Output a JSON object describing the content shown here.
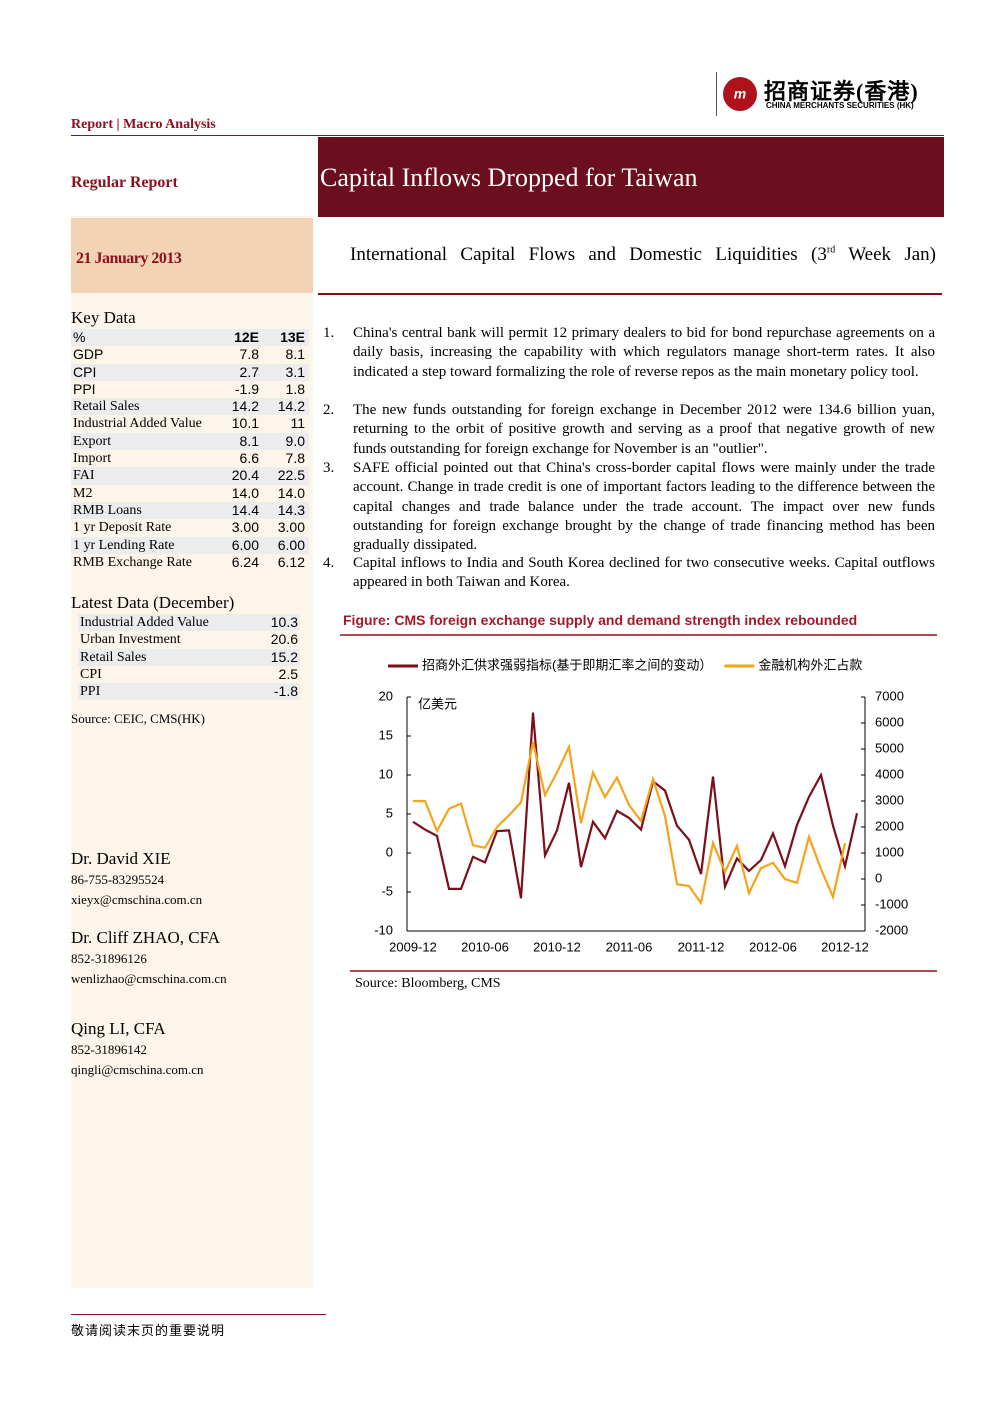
{
  "header": {
    "logo_cn": "招商证券(香港)",
    "logo_en": "CHINA MERCHANTS SECURITIES (HK)",
    "section": "Report | Macro Analysis",
    "report_type": "Regular Report",
    "date": "21 January 2013",
    "title": "Capital Inflows Dropped for Taiwan",
    "subtitle": [
      "International Capital Flows and Domestic Liquidities (3",
      "rd",
      " Week Jan)"
    ]
  },
  "key_data": {
    "title": "Key Data",
    "header": [
      "%",
      "12E",
      "13E"
    ],
    "rows": [
      [
        "GDP",
        "7.8",
        "8.1"
      ],
      [
        "CPI",
        "2.7",
        "3.1"
      ],
      [
        "PPI",
        "-1.9",
        "1.8"
      ],
      [
        "Retail Sales",
        "14.2",
        "14.2"
      ],
      [
        "Industrial Added Value",
        "10.1",
        "11"
      ],
      [
        "Export",
        "8.1",
        "9.0"
      ],
      [
        "Import",
        "6.6",
        "7.8"
      ],
      [
        "FAI",
        "20.4",
        "22.5"
      ],
      [
        "M2",
        "14.0",
        "14.0"
      ],
      [
        "RMB Loans",
        "14.4",
        "14.3"
      ],
      [
        "1 yr Deposit Rate",
        "3.00",
        "3.00"
      ],
      [
        "1 yr Lending Rate",
        "6.00",
        "6.00"
      ],
      [
        "RMB Exchange Rate",
        "6.24",
        "6.12"
      ]
    ]
  },
  "latest_data": {
    "title": "Latest Data (December)",
    "rows": [
      [
        "Industrial Added Value",
        "10.3"
      ],
      [
        "Urban Investment",
        "20.6"
      ],
      [
        "Retail Sales",
        "15.2"
      ],
      [
        "CPI",
        "2.5"
      ],
      [
        "PPI",
        "-1.8"
      ]
    ],
    "source": "Source: CEIC, CMS(HK)"
  },
  "authors": [
    {
      "name": "Dr. David XIE",
      "phone": "86-755-83295524",
      "email": "xieyx@cmschina.com.cn"
    },
    {
      "name": "Dr. Cliff ZHAO, CFA",
      "phone": "852-31896126",
      "email": "wenlizhao@cmschina.com.cn"
    },
    {
      "name": "Qing LI, CFA",
      "phone": "852-31896142",
      "email": "qingli@cmschina.com.cn"
    }
  ],
  "points": [
    {
      "number": "1.",
      "text": "China's central bank will permit 12 primary dealers to bid for bond repurchase agreements on a daily basis, increasing the capability with which regulators manage short-term rates. It also indicated a step toward formalizing the role of reverse repos as the main monetary policy tool."
    },
    {
      "number": "2.",
      "text": "The new funds outstanding for foreign exchange in December 2012 were 134.6 billion yuan, returning to the orbit of positive growth and serving as a proof that negative growth of new funds outstanding for foreign exchange for November is an \"outlier\"."
    },
    {
      "number": "3.",
      "text": "SAFE official pointed out that China's cross-border capital flows were mainly under the trade account. Change in trade credit is one of important factors leading to the difference between the capital changes and trade balance under the trade account. The impact over new funds outstanding for foreign exchange brought by the change of trade financing method has been gradually dissipated."
    },
    {
      "number": "4.",
      "text": "Capital inflows to India and South Korea declined for two consecutive weeks. Capital outflows appeared in both Taiwan and Korea."
    }
  ],
  "figure": {
    "title": "Figure:  CMS foreign exchange supply and demand strength index rebounded",
    "source": "Source:   Bloomberg, CMS"
  },
  "chart_data": {
    "type": "line",
    "annotation": "亿美元",
    "categories": [
      "2009-12",
      null,
      null,
      null,
      null,
      null,
      "2010-06",
      null,
      null,
      null,
      null,
      null,
      "2010-12",
      null,
      null,
      null,
      null,
      null,
      "2011-06",
      null,
      null,
      null,
      null,
      null,
      "2011-12",
      null,
      null,
      null,
      null,
      null,
      "2012-06",
      null,
      null,
      null,
      null,
      null,
      "2012-12",
      null
    ],
    "series": [
      {
        "name": "招商外汇供求强弱指标(基于即期汇率之间的变动）",
        "color": "#7b0f1a",
        "values": [
          4,
          3,
          2.2,
          -4.6,
          -4.6,
          -0.5,
          -1.2,
          2.8,
          2.9,
          -5.8,
          18,
          -0.3,
          2.9,
          9,
          -1.8,
          4,
          1.9,
          5.4,
          4.5,
          3,
          9.2,
          8,
          3.5,
          1.7,
          -2.7,
          9.8,
          -4.3,
          -0.7,
          -2.3,
          -0.9,
          2.5,
          -1.7,
          3.6,
          7.2,
          10,
          3.5,
          -1.7,
          5.1
        ]
      },
      {
        "name": "金融机构外汇占款",
        "color": "#f5a31a",
        "axis": "y2",
        "values": [
          3000,
          3000,
          1850,
          2700,
          2900,
          1300,
          1200,
          2000,
          2450,
          2950,
          5270,
          3230,
          4100,
          5080,
          2150,
          4100,
          3150,
          3900,
          2850,
          2230,
          3850,
          2420,
          -200,
          -270,
          -920,
          1380,
          270,
          1270,
          -540,
          420,
          620,
          0,
          -150,
          1620,
          380,
          -690,
          1380,
          null
        ]
      }
    ],
    "ylim": [
      -10,
      20
    ],
    "yticks": [
      -10,
      -5,
      0,
      5,
      10,
      15,
      20
    ],
    "y2lim": [
      -2000,
      7000
    ],
    "y2ticks": [
      -2000,
      -1000,
      0,
      1000,
      2000,
      3000,
      4000,
      5000,
      6000,
      7000
    ],
    "grid": false,
    "legend": "top"
  },
  "footer": "敬请阅读末页的重要说明"
}
